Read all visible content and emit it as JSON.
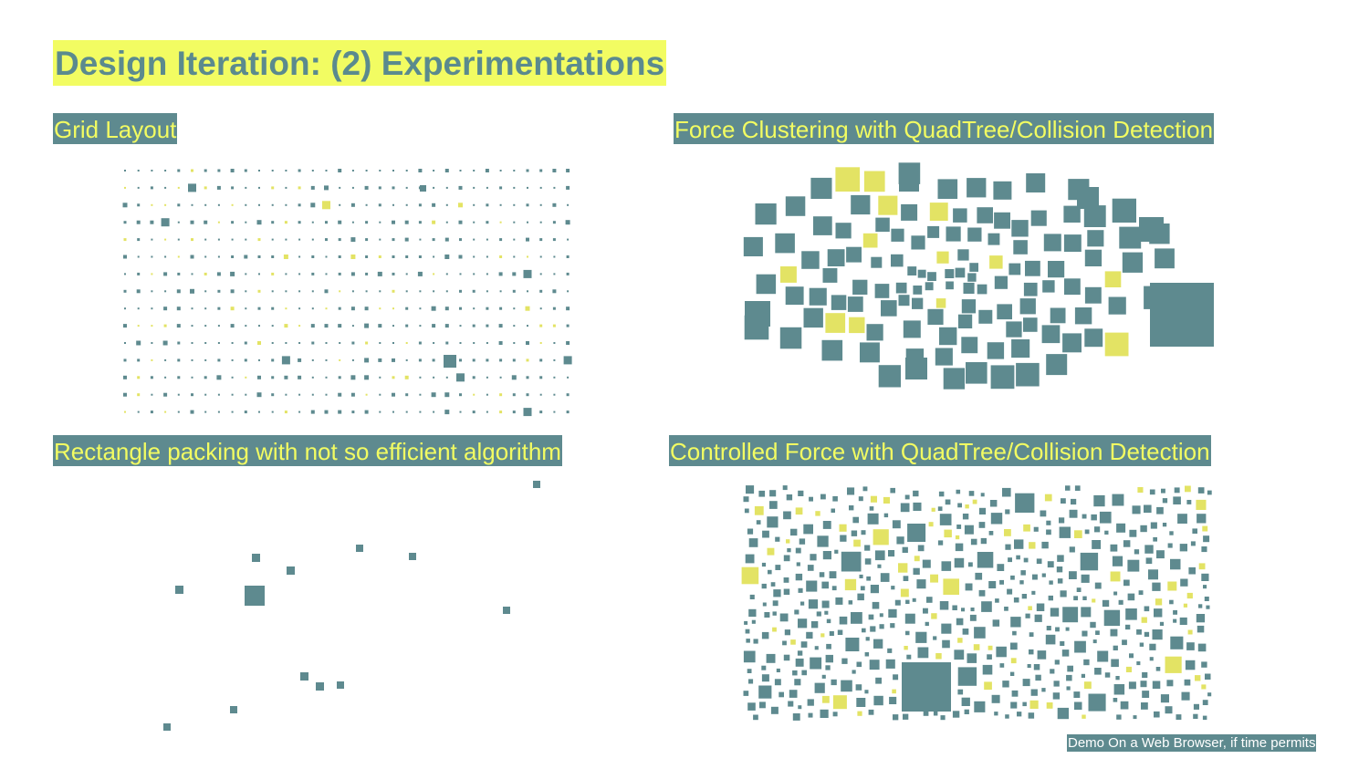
{
  "slide": {
    "title": "Design Iteration: (2) Experimentations",
    "note": "Demo On a Web Browser, if time permits"
  },
  "colors": {
    "teal": "#5e8a8f",
    "yellow": "#e3e364",
    "title_highlight": "#f2fc62"
  },
  "panels": [
    {
      "id": "grid",
      "label": "Grid Layout",
      "layout": "grid"
    },
    {
      "id": "force",
      "label": "Force Clustering with QuadTree/Collision Detection",
      "layout": "force-cluster"
    },
    {
      "id": "rect",
      "label": "Rectangle packing with not so efficient algorithm",
      "layout": "rectangle-packing"
    },
    {
      "id": "ctrl",
      "label": "Controlled Force with QuadTree/Collision Detection",
      "layout": "controlled-force"
    }
  ]
}
